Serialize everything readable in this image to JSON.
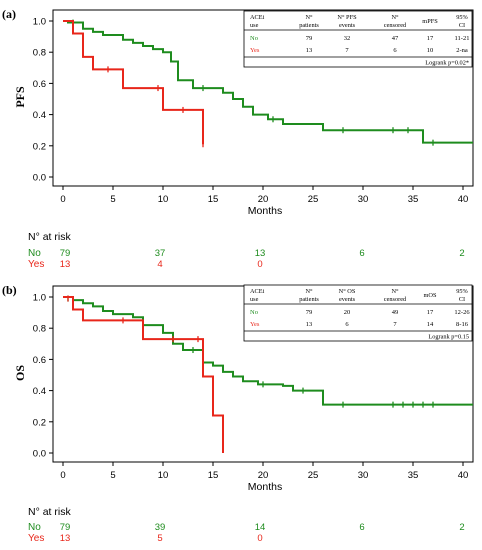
{
  "colors": {
    "no": "#1e8c1e",
    "yes": "#e8261a",
    "axis": "#000000",
    "grid": "#000000"
  },
  "chart_data": [
    {
      "type": "line",
      "panel_label": "(a)",
      "ylabel": "PFS",
      "xlabel": "Months",
      "xlim": [
        0,
        41
      ],
      "ylim": [
        0.0,
        1.0
      ],
      "xticks": [
        "0",
        "5",
        "10",
        "15",
        "20",
        "25",
        "30",
        "35",
        "40"
      ],
      "yticks": [
        "0.0",
        "0.2",
        "0.4",
        "0.6",
        "0.8",
        "1.0"
      ],
      "series": [
        {
          "name": "No",
          "color": "#1e8c1e",
          "steps": [
            [
              0,
              1.0
            ],
            [
              0.5,
              0.99
            ],
            [
              2,
              0.95
            ],
            [
              3,
              0.93
            ],
            [
              4,
              0.91
            ],
            [
              6,
              0.88
            ],
            [
              7,
              0.86
            ],
            [
              8,
              0.84
            ],
            [
              9,
              0.82
            ],
            [
              10,
              0.8
            ],
            [
              10.8,
              0.74
            ],
            [
              11.5,
              0.62
            ],
            [
              13,
              0.57
            ],
            [
              16,
              0.54
            ],
            [
              17,
              0.5
            ],
            [
              18,
              0.45
            ],
            [
              19,
              0.4
            ],
            [
              20.5,
              0.37
            ],
            [
              22,
              0.34
            ],
            [
              26,
              0.3
            ],
            [
              36,
              0.22
            ],
            [
              41,
              0.22
            ]
          ],
          "censors": [
            [
              1,
              0.99
            ],
            [
              14,
              0.57
            ],
            [
              21,
              0.37
            ],
            [
              28,
              0.3
            ],
            [
              33,
              0.3
            ],
            [
              34.5,
              0.3
            ],
            [
              37,
              0.22
            ]
          ]
        },
        {
          "name": "Yes",
          "color": "#e8261a",
          "steps": [
            [
              0,
              1.0
            ],
            [
              1,
              0.92
            ],
            [
              2,
              0.77
            ],
            [
              3,
              0.69
            ],
            [
              6,
              0.57
            ],
            [
              10,
              0.43
            ],
            [
              14,
              0.21
            ]
          ],
          "censors": [
            [
              4.5,
              0.69
            ],
            [
              9.5,
              0.57
            ],
            [
              12,
              0.43
            ],
            [
              14,
              0.21
            ]
          ]
        }
      ],
      "table": {
        "headers": [
          "ACEi use",
          "N° patients",
          "N° PFS events",
          "N° censored",
          "mPFS",
          "95% CI"
        ],
        "rows": [
          {
            "label": "No",
            "color": "#1e8c1e",
            "cells": [
              "79",
              "32",
              "47",
              "17",
              "11-21"
            ]
          },
          {
            "label": "Yes",
            "color": "#e8261a",
            "cells": [
              "13",
              "7",
              "6",
              "10",
              "2-na"
            ]
          }
        ],
        "footnote": "Logrank p=0.02*"
      },
      "risk": {
        "title": "N° at risk",
        "rows": [
          {
            "label": "No",
            "color": "#1e8c1e",
            "values": [
              "79",
              "37",
              "13",
              "6",
              "2"
            ]
          },
          {
            "label": "Yes",
            "color": "#e8261a",
            "values": [
              "13",
              "4",
              "0"
            ]
          }
        ]
      }
    },
    {
      "type": "line",
      "panel_label": "(b)",
      "ylabel": "OS",
      "xlabel": "Months",
      "xlim": [
        0,
        41
      ],
      "ylim": [
        0.0,
        1.0
      ],
      "xticks": [
        "0",
        "5",
        "10",
        "15",
        "20",
        "25",
        "30",
        "35",
        "40"
      ],
      "yticks": [
        "0.0",
        "0.2",
        "0.4",
        "0.6",
        "0.8",
        "1.0"
      ],
      "series": [
        {
          "name": "No",
          "color": "#1e8c1e",
          "steps": [
            [
              0,
              1.0
            ],
            [
              1,
              0.98
            ],
            [
              2,
              0.96
            ],
            [
              3,
              0.94
            ],
            [
              4,
              0.91
            ],
            [
              5,
              0.89
            ],
            [
              7,
              0.87
            ],
            [
              8,
              0.82
            ],
            [
              10,
              0.77
            ],
            [
              11,
              0.7
            ],
            [
              12,
              0.66
            ],
            [
              14,
              0.58
            ],
            [
              15,
              0.56
            ],
            [
              16,
              0.52
            ],
            [
              17,
              0.49
            ],
            [
              18,
              0.46
            ],
            [
              19.5,
              0.44
            ],
            [
              22,
              0.43
            ],
            [
              23,
              0.4
            ],
            [
              26,
              0.31
            ],
            [
              41,
              0.31
            ]
          ],
          "censors": [
            [
              0.5,
              0.99
            ],
            [
              13,
              0.66
            ],
            [
              20,
              0.44
            ],
            [
              24,
              0.4
            ],
            [
              28,
              0.31
            ],
            [
              33,
              0.31
            ],
            [
              34,
              0.31
            ],
            [
              35,
              0.31
            ],
            [
              36,
              0.31
            ],
            [
              37,
              0.31
            ]
          ]
        },
        {
          "name": "Yes",
          "color": "#e8261a",
          "steps": [
            [
              0,
              1.0
            ],
            [
              1,
              0.92
            ],
            [
              2,
              0.85
            ],
            [
              8,
              0.73
            ],
            [
              14,
              0.49
            ],
            [
              15,
              0.24
            ],
            [
              16,
              0.0
            ]
          ],
          "censors": [
            [
              0.5,
              0.99
            ],
            [
              6,
              0.85
            ],
            [
              11,
              0.73
            ],
            [
              13.5,
              0.73
            ]
          ]
        }
      ],
      "table": {
        "headers": [
          "ACEi use",
          "N° patients",
          "N° OS events",
          "N° censored",
          "mOS",
          "95% CI"
        ],
        "rows": [
          {
            "label": "No",
            "color": "#1e8c1e",
            "cells": [
              "79",
              "20",
              "49",
              "17",
              "12-26"
            ]
          },
          {
            "label": "Yes",
            "color": "#e8261a",
            "cells": [
              "13",
              "6",
              "7",
              "14",
              "8-16"
            ]
          }
        ],
        "footnote": "Logrank p=0.15"
      },
      "risk": {
        "title": "N° at risk",
        "rows": [
          {
            "label": "No",
            "color": "#1e8c1e",
            "values": [
              "79",
              "39",
              "14",
              "6",
              "2"
            ]
          },
          {
            "label": "Yes",
            "color": "#e8261a",
            "values": [
              "13",
              "5",
              "0"
            ]
          }
        ]
      }
    }
  ]
}
